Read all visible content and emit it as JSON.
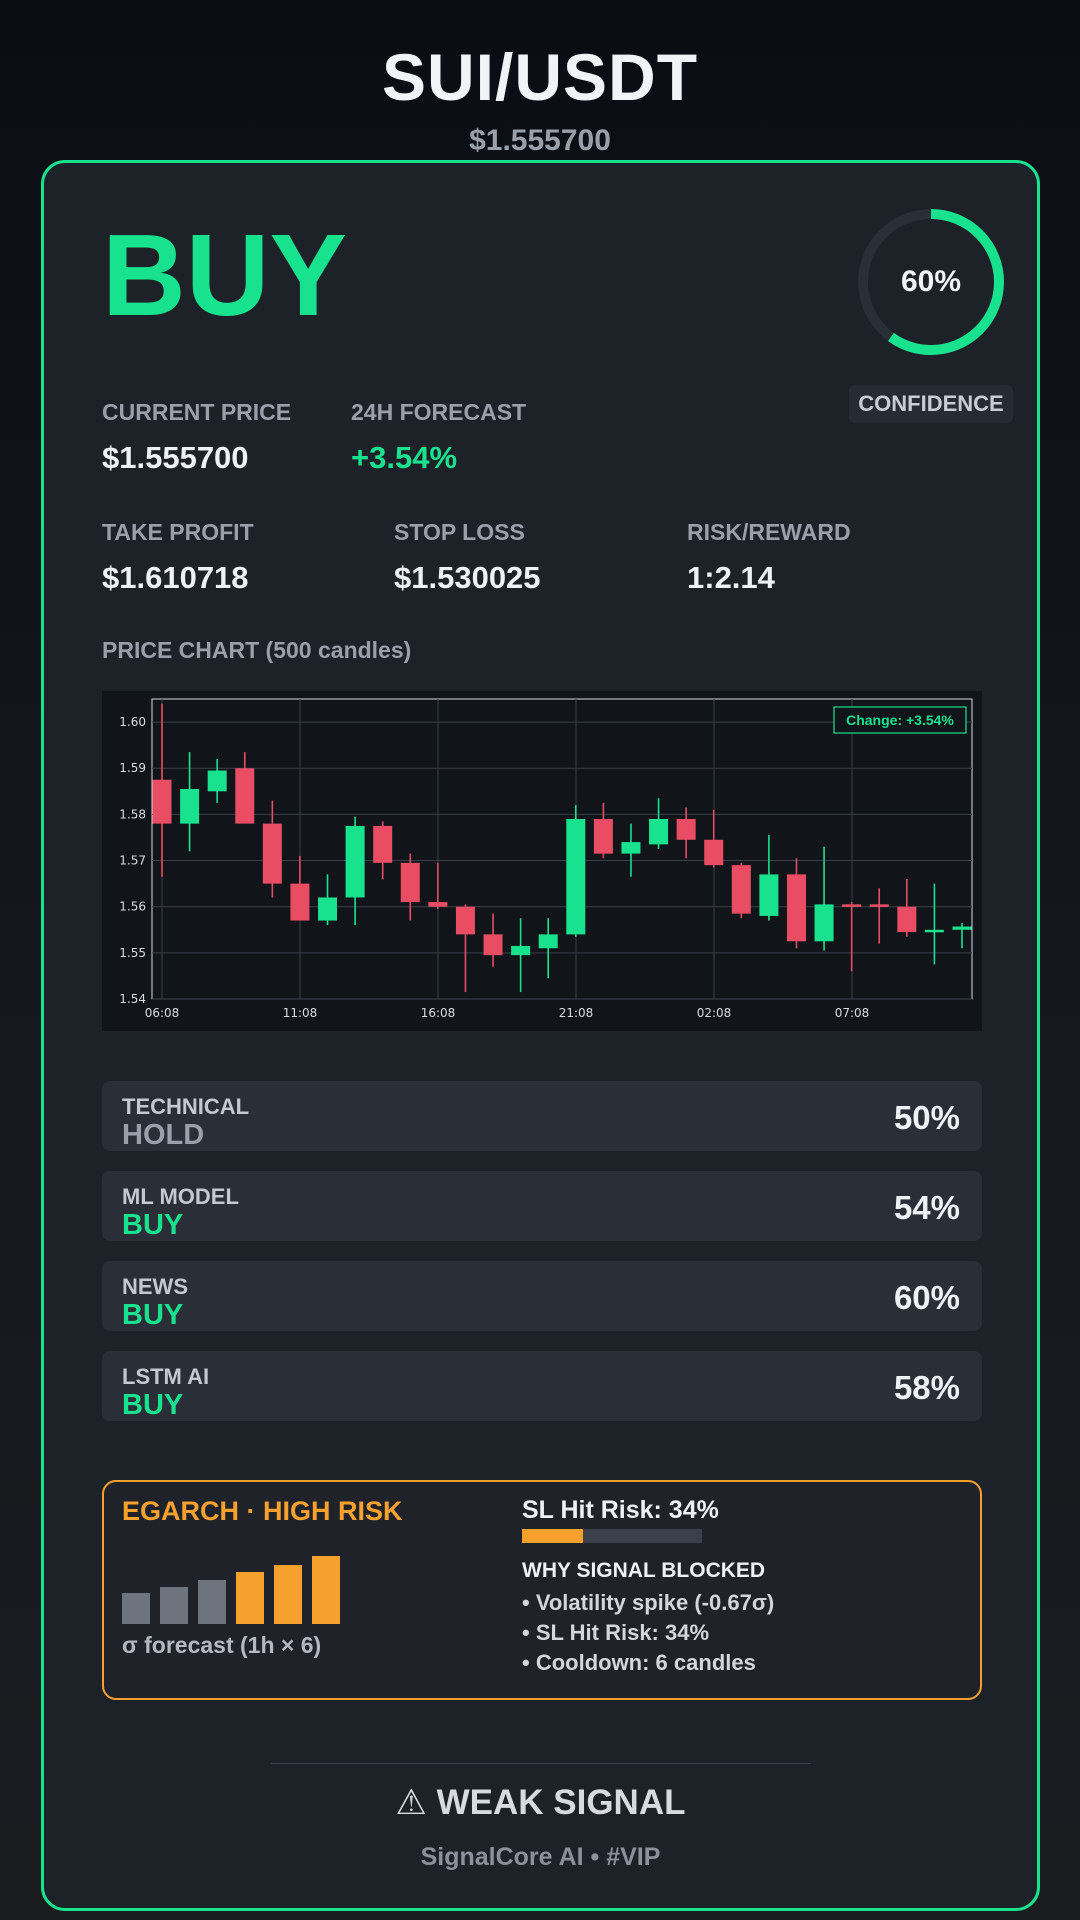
{
  "header": {
    "pair": "SUI/USDT",
    "price": "$1.555700"
  },
  "signal": {
    "label": "BUY",
    "color": "#19e28f"
  },
  "confidence": {
    "value": 60,
    "text": "60%",
    "label": "CONFIDENCE"
  },
  "stats": {
    "current_price": {
      "label": "CURRENT PRICE",
      "value": "$1.555700"
    },
    "forecast": {
      "label": "24H FORECAST",
      "value": "+3.54%"
    },
    "take_profit": {
      "label": "TAKE PROFIT",
      "value": "$1.610718"
    },
    "stop_loss": {
      "label": "STOP LOSS",
      "value": "$1.530025"
    },
    "risk_reward": {
      "label": "RISK/REWARD",
      "value": "1:2.14"
    }
  },
  "chart": {
    "title": "PRICE CHART (500 candles)"
  },
  "chart_data": {
    "type": "candlestick",
    "ylim": [
      1.54,
      1.605
    ],
    "yticks": [
      "1.54",
      "1.55",
      "1.56",
      "1.57",
      "1.58",
      "1.59",
      "1.60"
    ],
    "xticks": [
      "06:08",
      "11:08",
      "16:08",
      "21:08",
      "02:08",
      "07:08"
    ],
    "annotation": "Change: +3.54%",
    "up_color": "#19e28f",
    "down_color": "#e84d64",
    "candles": [
      {
        "o": 1.5875,
        "h": 1.604,
        "l": 1.5665,
        "c": 1.578
      },
      {
        "o": 1.578,
        "h": 1.5935,
        "l": 1.572,
        "c": 1.5855
      },
      {
        "o": 1.585,
        "h": 1.592,
        "l": 1.5825,
        "c": 1.5895
      },
      {
        "o": 1.59,
        "h": 1.5935,
        "l": 1.578,
        "c": 1.578
      },
      {
        "o": 1.578,
        "h": 1.583,
        "l": 1.562,
        "c": 1.565
      },
      {
        "o": 1.565,
        "h": 1.571,
        "l": 1.557,
        "c": 1.557
      },
      {
        "o": 1.557,
        "h": 1.567,
        "l": 1.556,
        "c": 1.562
      },
      {
        "o": 1.562,
        "h": 1.5795,
        "l": 1.556,
        "c": 1.5775
      },
      {
        "o": 1.5775,
        "h": 1.5785,
        "l": 1.566,
        "c": 1.5695
      },
      {
        "o": 1.5695,
        "h": 1.5715,
        "l": 1.557,
        "c": 1.561
      },
      {
        "o": 1.561,
        "h": 1.5695,
        "l": 1.5595,
        "c": 1.56
      },
      {
        "o": 1.56,
        "h": 1.5605,
        "l": 1.5415,
        "c": 1.554
      },
      {
        "o": 1.554,
        "h": 1.5585,
        "l": 1.547,
        "c": 1.5495
      },
      {
        "o": 1.5495,
        "h": 1.5575,
        "l": 1.5415,
        "c": 1.5515
      },
      {
        "o": 1.551,
        "h": 1.5575,
        "l": 1.5445,
        "c": 1.554
      },
      {
        "o": 1.554,
        "h": 1.582,
        "l": 1.5535,
        "c": 1.579
      },
      {
        "o": 1.579,
        "h": 1.5825,
        "l": 1.5705,
        "c": 1.5715
      },
      {
        "o": 1.5715,
        "h": 1.578,
        "l": 1.5665,
        "c": 1.574
      },
      {
        "o": 1.5735,
        "h": 1.5835,
        "l": 1.5725,
        "c": 1.579
      },
      {
        "o": 1.579,
        "h": 1.5815,
        "l": 1.5705,
        "c": 1.5745
      },
      {
        "o": 1.5745,
        "h": 1.581,
        "l": 1.5685,
        "c": 1.569
      },
      {
        "o": 1.569,
        "h": 1.5695,
        "l": 1.5575,
        "c": 1.5585
      },
      {
        "o": 1.558,
        "h": 1.5755,
        "l": 1.557,
        "c": 1.567
      },
      {
        "o": 1.567,
        "h": 1.5705,
        "l": 1.551,
        "c": 1.5525
      },
      {
        "o": 1.5525,
        "h": 1.573,
        "l": 1.5505,
        "c": 1.5605
      },
      {
        "o": 1.5605,
        "h": 1.561,
        "l": 1.546,
        "c": 1.56
      },
      {
        "o": 1.5605,
        "h": 1.564,
        "l": 1.552,
        "c": 1.56
      },
      {
        "o": 1.56,
        "h": 1.566,
        "l": 1.5535,
        "c": 1.5545
      },
      {
        "o": 1.5545,
        "h": 1.565,
        "l": 1.5475,
        "c": 1.555
      },
      {
        "o": 1.555,
        "h": 1.5565,
        "l": 1.551,
        "c": 1.5557
      }
    ]
  },
  "models": [
    {
      "name": "TECHNICAL",
      "signal": "HOLD",
      "kind": "hold",
      "pct": "50%"
    },
    {
      "name": "ML MODEL",
      "signal": "BUY",
      "kind": "buy",
      "pct": "54%"
    },
    {
      "name": "NEWS",
      "signal": "BUY",
      "kind": "buy",
      "pct": "60%"
    },
    {
      "name": "LSTM AI",
      "signal": "BUY",
      "kind": "buy",
      "pct": "58%"
    }
  ],
  "risk": {
    "title": "EGARCH · HIGH RISK",
    "sigma_label": "σ forecast (1h × 6)",
    "sigma_levels": [
      0.42,
      0.5,
      0.6,
      0.7,
      0.8,
      0.92
    ],
    "sigma_colors": [
      "#6e747d",
      "#6e747d",
      "#6e747d",
      "#f6a02e",
      "#f6a02e",
      "#f6a02e"
    ],
    "sl_title": "SL Hit Risk: 34%",
    "sl_value": 0.34,
    "why_title": "WHY SIGNAL BLOCKED",
    "why_items": [
      "• Volatility spike (-0.67σ)",
      "• SL Hit Risk: 34%",
      "• Cooldown: 6 candles"
    ]
  },
  "footer": {
    "weak_signal": "⚠ WEAK SIGNAL",
    "brand": "SignalCore AI • #VIP"
  }
}
